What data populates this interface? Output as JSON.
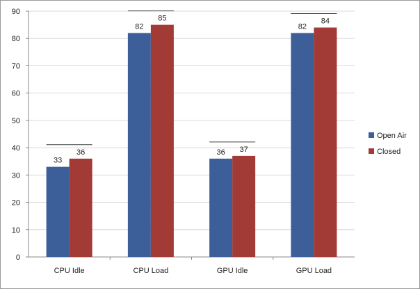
{
  "chart_data": {
    "type": "bar",
    "categories": [
      "CPU Idle",
      "CPU Load",
      "GPU Idle",
      "GPU Load"
    ],
    "series": [
      {
        "name": "Open Air",
        "values": [
          33,
          82,
          36,
          82
        ],
        "color": "#3c5f9a"
      },
      {
        "name": "Closed",
        "values": [
          36,
          85,
          37,
          84
        ],
        "color": "#a23a35"
      }
    ],
    "ylim": [
      0,
      90
    ],
    "yticks": [
      0,
      10,
      20,
      30,
      40,
      50,
      60,
      70,
      80,
      90
    ],
    "grid": true,
    "legend_position": "right",
    "title": "",
    "xlabel": "",
    "ylabel": ""
  }
}
